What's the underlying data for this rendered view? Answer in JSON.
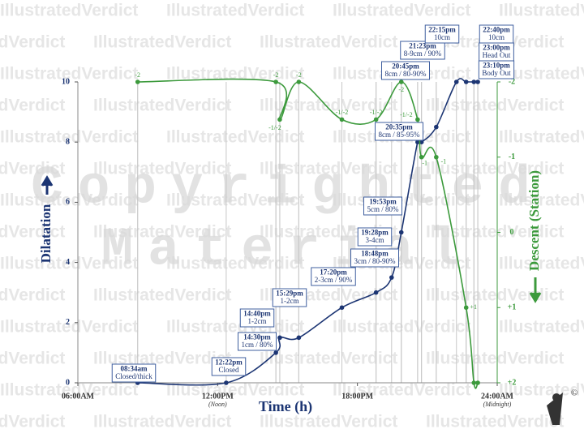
{
  "chart_data": {
    "type": "line",
    "x_label": "Time (h)",
    "xlim": [
      6,
      24
    ],
    "xticks": [
      {
        "value": 6,
        "label": "06:00AM"
      },
      {
        "value": 12,
        "label": "12:00PM"
      },
      {
        "value": 18,
        "label": "18:00PM"
      },
      {
        "value": 24,
        "label": "24:00AM"
      }
    ],
    "xtick_notes": [
      {
        "value": 12,
        "label": "(Noon)"
      },
      {
        "value": 24,
        "label": "(Midnight)"
      }
    ],
    "ylim": [
      0,
      10
    ],
    "yticks": [
      0,
      2,
      4,
      6,
      8,
      10
    ],
    "y2lim": [
      2,
      -2
    ],
    "y2ticks": [
      -2,
      -1,
      0,
      {
        "value": 1,
        "label": "+1"
      },
      {
        "value": 2,
        "label": "+2"
      }
    ],
    "watermark": [
      "Copyrighted",
      "Material"
    ],
    "background_text": "IllustratedVerdict",
    "mark": "©",
    "series": [
      {
        "name": "Dilatation",
        "color": "#1c3573",
        "x": [
          8.567,
          12.367,
          14.5,
          14.667,
          15.483,
          17.333,
          18.8,
          19.467,
          19.883,
          20.583,
          20.75,
          21.383,
          22.25,
          22.667,
          23.0,
          23.167
        ],
        "values": [
          0,
          0,
          1,
          1.5,
          1.5,
          2.5,
          3,
          3.5,
          5,
          8,
          8,
          8.5,
          10,
          10,
          10,
          10
        ],
        "times": [
          "08:34am",
          "12:22pm",
          "14:30pm",
          "14:40pm",
          "15:29pm",
          "17:20pm",
          "18:48pm",
          "19:28pm",
          "19:53pm",
          "20:35pm",
          "20:45pm",
          "21:23pm",
          "22:15pm",
          "22:40pm",
          "23:00pm",
          "23:10pm"
        ],
        "notes": [
          "Closed/thick",
          "Closed",
          "1cm / 80%",
          "1-2cm",
          "1-2cm",
          "2-3cm / 90%",
          "3cm / 80-90%",
          "3-4cm",
          "5cm / 80%",
          "8cm / 85-95%",
          "8cm / 80-90%",
          "8-9cm / 90%",
          "10cm",
          "10cm",
          "Head Out",
          "Body Out"
        ]
      },
      {
        "name": "Descent (Station)",
        "color": "#3c9a3c",
        "axis": "y2",
        "x": [
          8.567,
          14.5,
          14.667,
          15.483,
          17.333,
          18.8,
          19.883,
          20.583,
          20.75,
          21.383,
          22.667,
          23.0,
          23.167
        ],
        "values": [
          -2,
          -2,
          -1.5,
          -2,
          -1.5,
          -1.5,
          -2,
          -1.5,
          -1,
          -1,
          1,
          2,
          2
        ],
        "value_labels": [
          "-2",
          "-2",
          "-1/-2",
          "-2",
          "-1/-2",
          "-1/-2",
          "-2",
          "-1/-2",
          "-1",
          "-1",
          "+1",
          null,
          null
        ]
      }
    ]
  }
}
